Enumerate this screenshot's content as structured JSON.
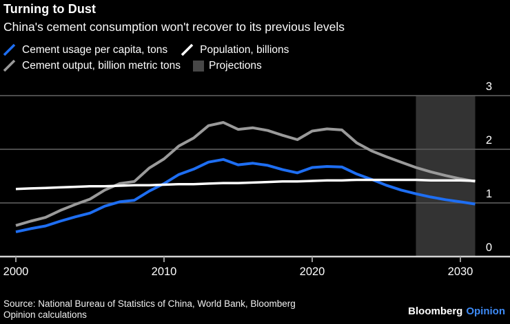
{
  "header": {
    "title": "Turning to Dust",
    "subtitle": "China's cement consumption won't recover to its previous levels"
  },
  "legend": {
    "items": [
      {
        "label": "Cement usage per capita, tons",
        "swatch": "slash-icon",
        "color": "#1e6ef2"
      },
      {
        "label": "Population, billions",
        "swatch": "slash-icon",
        "color": "#ffffff"
      },
      {
        "label": "Cement output, billion metric tons",
        "swatch": "slash-icon",
        "color": "#9a9a9a"
      },
      {
        "label": "Projections",
        "swatch": "square-icon",
        "color": "#474747"
      }
    ]
  },
  "chart_data": {
    "type": "line",
    "title": "Turning to Dust",
    "subtitle": "China's cement consumption won't recover to its previous levels",
    "xlabel": "",
    "ylabel": "",
    "x": [
      2000,
      2001,
      2002,
      2003,
      2004,
      2005,
      2006,
      2007,
      2008,
      2009,
      2010,
      2011,
      2012,
      2013,
      2014,
      2015,
      2016,
      2017,
      2018,
      2019,
      2020,
      2021,
      2022,
      2023,
      2024,
      2025,
      2026,
      2027,
      2028,
      2029,
      2030,
      2031
    ],
    "series": [
      {
        "name": "Cement output, billion metric tons",
        "color": "#9a9a9a",
        "width": 4,
        "values": [
          0.58,
          0.66,
          0.73,
          0.86,
          0.97,
          1.07,
          1.24,
          1.36,
          1.4,
          1.65,
          1.82,
          2.06,
          2.21,
          2.44,
          2.5,
          2.37,
          2.4,
          2.35,
          2.26,
          2.18,
          2.34,
          2.38,
          2.36,
          2.12,
          1.97,
          1.86,
          1.76,
          1.66,
          1.58,
          1.51,
          1.45,
          1.4
        ]
      },
      {
        "name": "Cement usage per capita, tons",
        "color": "#1e6ef2",
        "width": 4,
        "values": [
          0.46,
          0.52,
          0.57,
          0.66,
          0.74,
          0.81,
          0.94,
          1.02,
          1.05,
          1.22,
          1.36,
          1.53,
          1.63,
          1.76,
          1.81,
          1.71,
          1.74,
          1.7,
          1.62,
          1.56,
          1.66,
          1.68,
          1.67,
          1.54,
          1.44,
          1.33,
          1.24,
          1.17,
          1.11,
          1.06,
          1.02,
          0.98
        ]
      },
      {
        "name": "Population, billions",
        "color": "#ffffff",
        "width": 3.5,
        "values": [
          1.26,
          1.27,
          1.28,
          1.29,
          1.3,
          1.31,
          1.31,
          1.32,
          1.33,
          1.33,
          1.34,
          1.35,
          1.35,
          1.36,
          1.37,
          1.37,
          1.38,
          1.39,
          1.4,
          1.4,
          1.41,
          1.42,
          1.42,
          1.43,
          1.43,
          1.43,
          1.43,
          1.43,
          1.42,
          1.42,
          1.42,
          1.41
        ]
      }
    ],
    "x_ticks": [
      2000,
      2010,
      2020,
      2030
    ],
    "y_ticks": [
      0,
      1,
      2,
      3
    ],
    "xlim": [
      2000,
      2031
    ],
    "ylim": [
      0,
      3
    ],
    "grid": "horizontal",
    "legend_position": "top",
    "projection_band": {
      "label": "Projections",
      "start": 2027,
      "end": 2031,
      "color": "#333333"
    }
  },
  "colors": {
    "background": "#000000",
    "text": "#ffffff",
    "blue_line": "#1e6ef2",
    "gray_line": "#9a9a9a",
    "white_line": "#ffffff",
    "gridline": "#575757",
    "axis_line": "#d4d4d4",
    "tick": "#999999",
    "projection_band": "#333333",
    "projection_swatch": "#474747",
    "logo_opinion": "#3d8af5"
  },
  "footer": {
    "source_lines": [
      "Source: National Bureau of Statistics of China, World Bank, Bloomberg",
      "Opinion calculations"
    ],
    "logo": {
      "bloomberg": "Bloomberg",
      "opinion": "Opinion"
    }
  }
}
